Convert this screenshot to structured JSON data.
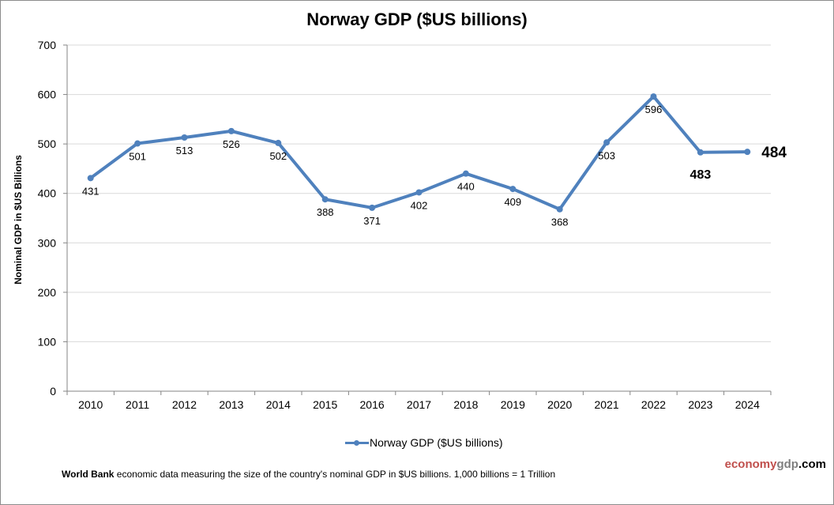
{
  "chart_data": {
    "type": "line",
    "title": "Norway GDP ($US billions)",
    "xlabel": "",
    "ylabel": "Nominal GDP in $US  Billions",
    "categories": [
      "2010",
      "2011",
      "2012",
      "2013",
      "2014",
      "2015",
      "2016",
      "2017",
      "2018",
      "2019",
      "2020",
      "2021",
      "2022",
      "2023",
      "2024"
    ],
    "series": [
      {
        "name": "Norway GDP ($US billions)",
        "color": "#4f81bd",
        "values": [
          431,
          501,
          513,
          526,
          502,
          388,
          371,
          402,
          440,
          409,
          368,
          503,
          596,
          483,
          484
        ]
      }
    ],
    "data_labels": [
      "431",
      "501",
      "513",
      "526",
      "502",
      "388",
      "371",
      "402",
      "440",
      "409",
      "368",
      "503",
      "596",
      "483",
      "484"
    ],
    "emphasized_labels": [
      "2023",
      "2024"
    ],
    "ylim": [
      0,
      700
    ],
    "yticks": [
      "0",
      "100",
      "200",
      "300",
      "400",
      "500",
      "600",
      "700"
    ],
    "grid": true,
    "legend": "bottom-center"
  },
  "footer": {
    "source_bold": "World Bank",
    "source_text": " economic data  measuring the size of the country's nominal  GDP in $US billions. 1,000 billions = 1 Trillion",
    "brand_part1": "economy",
    "brand_part2": "gdp",
    "brand_part3": ".com"
  }
}
